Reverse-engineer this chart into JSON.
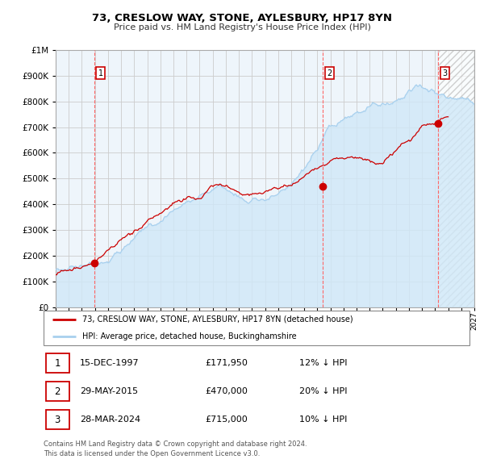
{
  "title": "73, CRESLOW WAY, STONE, AYLESBURY, HP17 8YN",
  "subtitle": "Price paid vs. HM Land Registry's House Price Index (HPI)",
  "xlim": [
    1995.0,
    2027.0
  ],
  "ylim": [
    0,
    1000000
  ],
  "yticks": [
    0,
    100000,
    200000,
    300000,
    400000,
    500000,
    600000,
    700000,
    800000,
    900000,
    1000000
  ],
  "hpi_color": "#a8d0ee",
  "hpi_fill_color": "#d0e8f8",
  "price_color": "#cc0000",
  "vline_color": "#ff6666",
  "background_color": "#ffffff",
  "grid_color": "#cccccc",
  "transaction_points": [
    {
      "year": 1997.958,
      "price": 171950,
      "label": "1"
    },
    {
      "year": 2015.416,
      "price": 470000,
      "label": "2"
    },
    {
      "year": 2024.247,
      "price": 715000,
      "label": "3"
    }
  ],
  "legend_line1": "73, CRESLOW WAY, STONE, AYLESBURY, HP17 8YN (detached house)",
  "legend_line2": "HPI: Average price, detached house, Buckinghamshire",
  "table_rows": [
    {
      "num": "1",
      "date": "15-DEC-1997",
      "price": "£171,950",
      "change": "12% ↓ HPI"
    },
    {
      "num": "2",
      "date": "29-MAY-2015",
      "price": "£470,000",
      "change": "20% ↓ HPI"
    },
    {
      "num": "3",
      "date": "28-MAR-2024",
      "price": "£715,000",
      "change": "10% ↓ HPI"
    }
  ],
  "footer": "Contains HM Land Registry data © Crown copyright and database right 2024.\nThis data is licensed under the Open Government Licence v3.0."
}
